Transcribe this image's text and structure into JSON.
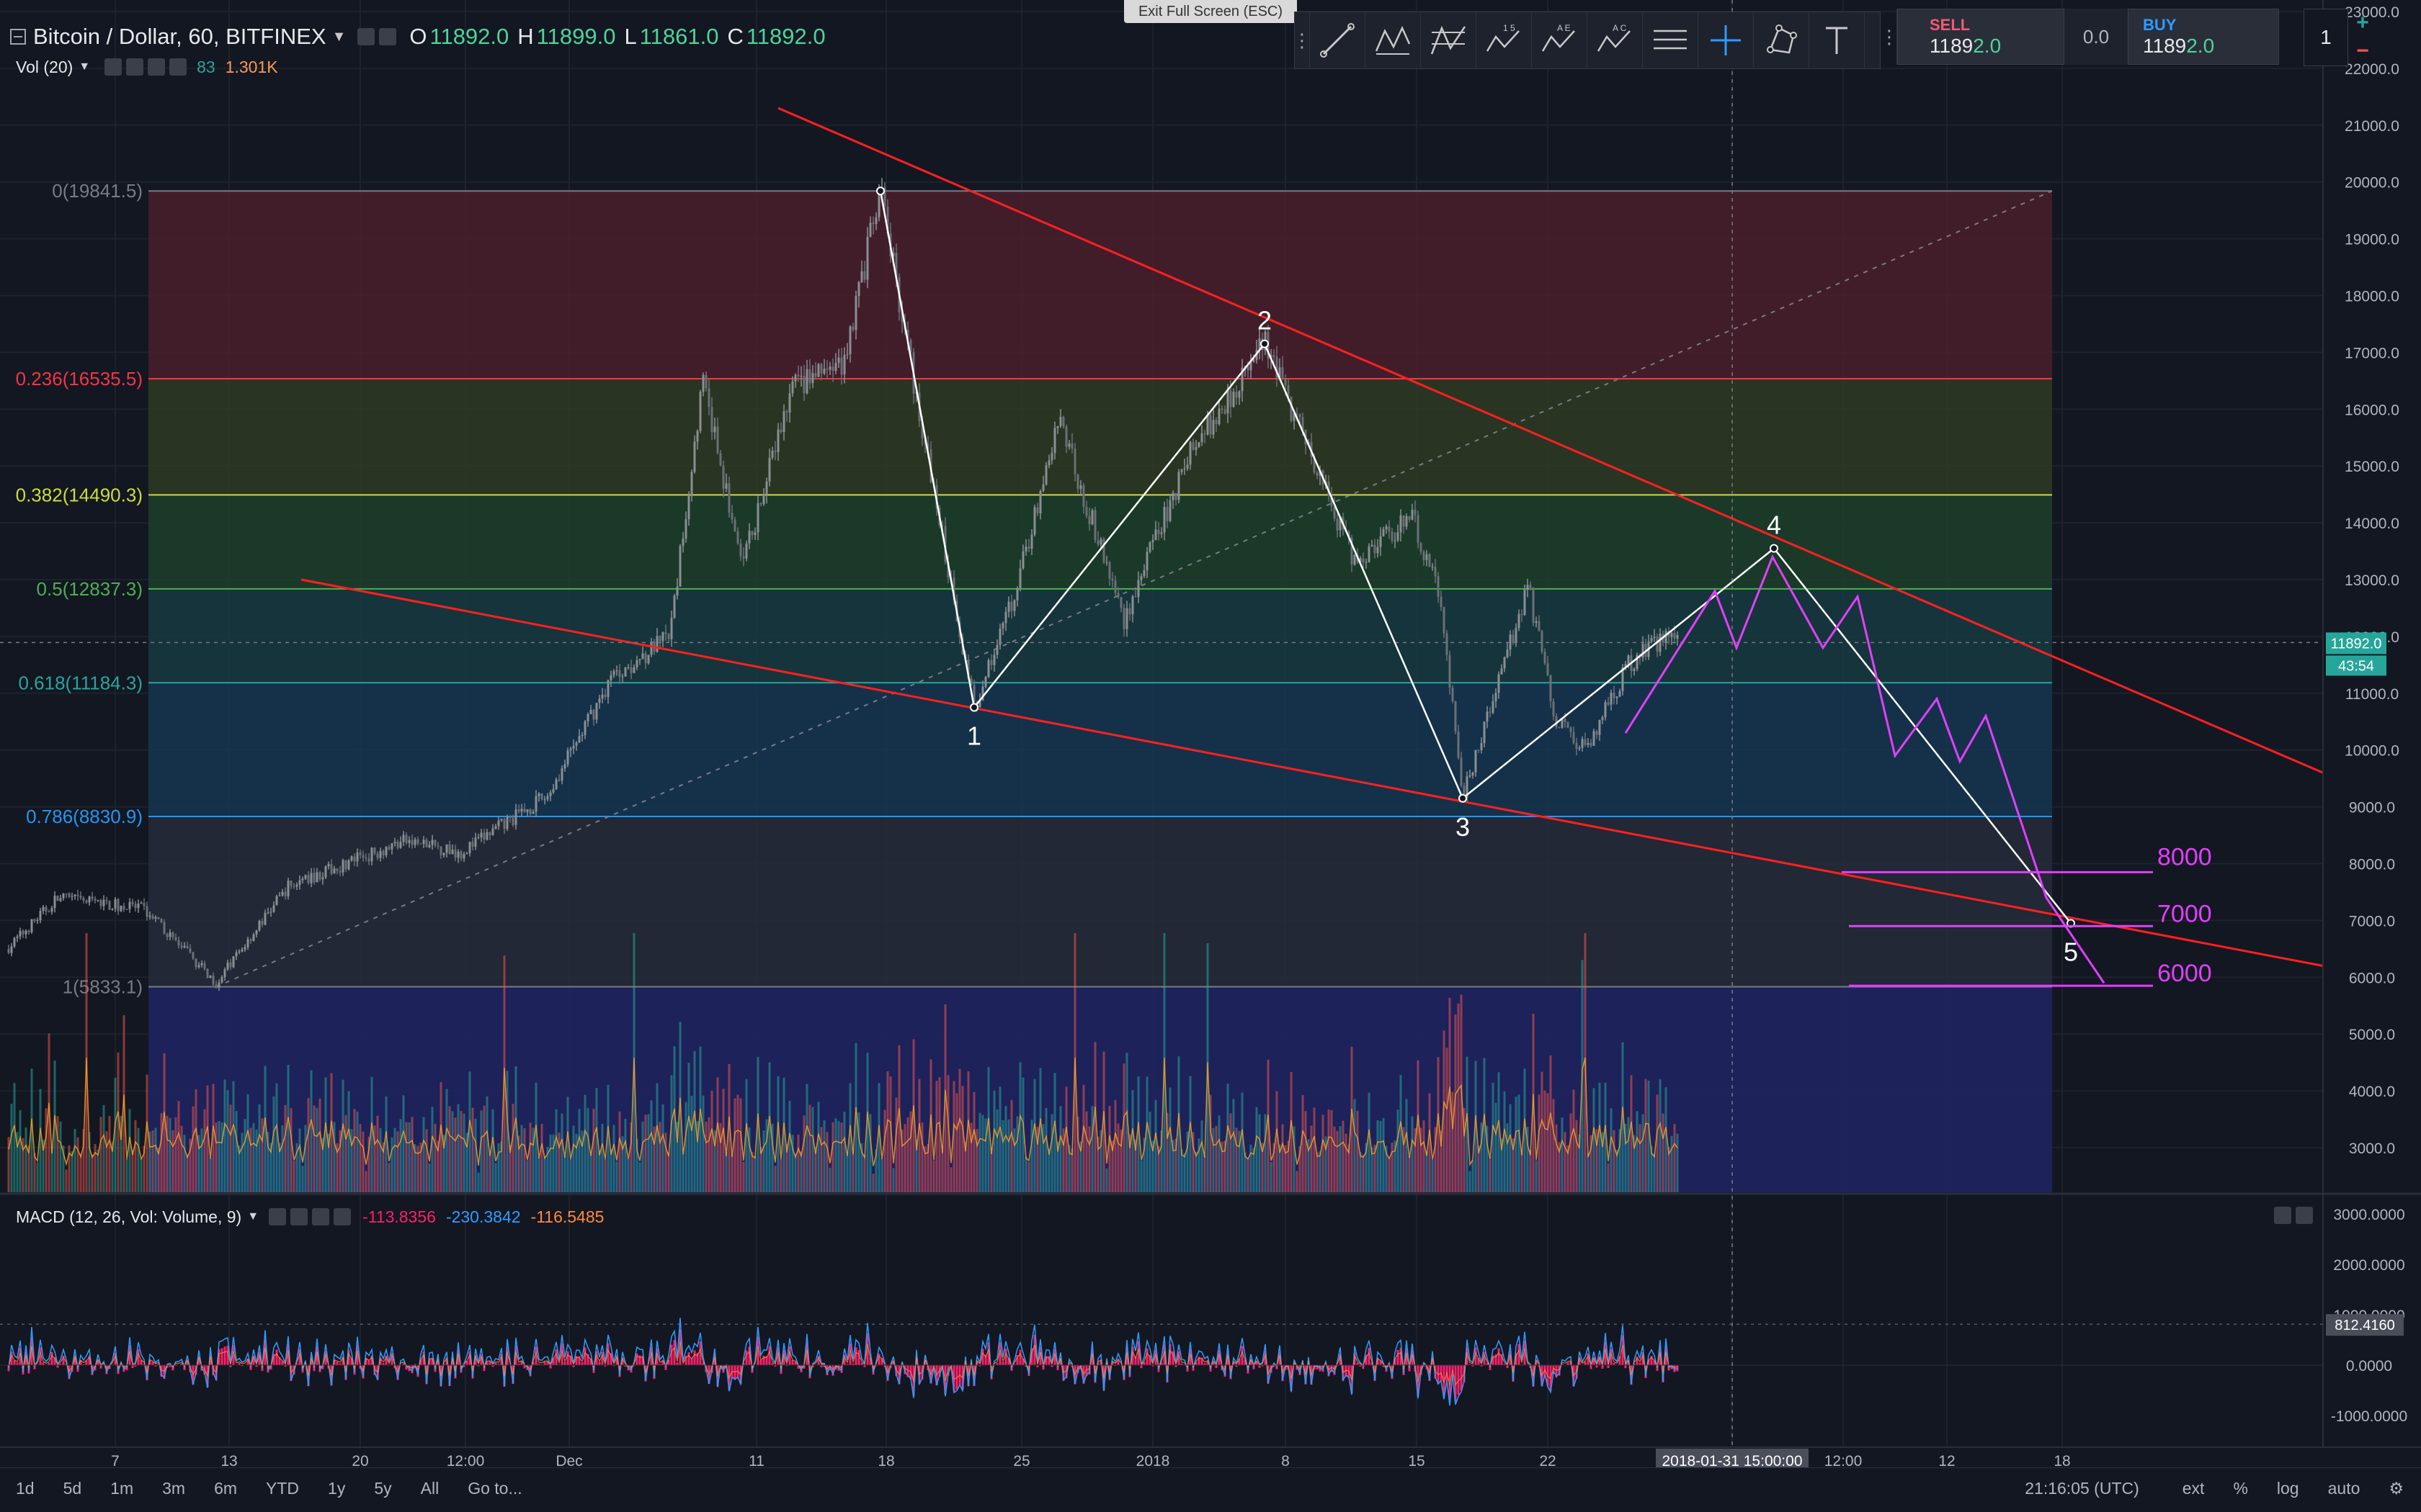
{
  "header": {
    "symbol": "Bitcoin / Dollar, 60, BITFINEX",
    "open_label": "O",
    "open": "11892.0",
    "high_label": "H",
    "high": "11899.0",
    "low_label": "L",
    "low": "11861.0",
    "close_label": "C",
    "close": "11892.0"
  },
  "volume_indicator": {
    "label": "Vol (20)",
    "value1": "83",
    "value2": "1.301K"
  },
  "macd_indicator": {
    "label": "MACD (12, 26, Vol: Volume, 9)",
    "value1": "-113.8356",
    "value2": "-230.3842",
    "value3": "-116.5485"
  },
  "exit_fullscreen": "Exit Full Screen (ESC)",
  "trade_panel": {
    "sell_label": "SELL",
    "sell_price_a": "1189",
    "sell_price_b": "2.0",
    "spread": "0.0",
    "buy_label": "BUY",
    "buy_price_a": "1189",
    "buy_price_b": "2.0",
    "quantity": "1",
    "plus": "+",
    "minus": "−"
  },
  "toolbar_icons": [
    "trend-line-icon",
    "pitchfork-icon",
    "fib-icon",
    "abcd-pattern-icon",
    "elliott-wave-icon",
    "xabcd-pattern-icon",
    "lines-icon",
    "crosshair-icon",
    "node-shape-icon",
    "text-icon"
  ],
  "bottom_bar": {
    "timeframes": [
      "1d",
      "5d",
      "1m",
      "3m",
      "6m",
      "YTD",
      "1y",
      "5y",
      "All"
    ],
    "goto": "Go to...",
    "clock": "21:16:05 (UTC)",
    "options": [
      "ext",
      "%",
      "log",
      "auto"
    ]
  },
  "colors": {
    "up": "#26a69a",
    "down": "#ef5350",
    "trendline": "#ff2020",
    "magenta": "#e040fb",
    "wave": "#ffffff"
  },
  "chart_data": {
    "type": "candlestick",
    "price_axis_ticks": [
      23000,
      22000,
      21000,
      20000,
      19000,
      18000,
      17000,
      16000,
      15000,
      14000,
      13000,
      12000,
      11000,
      10000,
      9000,
      8000,
      7000,
      6000,
      5000,
      4000,
      3000
    ],
    "price_axis_labels": [
      "23000.0",
      "22000.0",
      "21000.0",
      "20000.0",
      "19000.0",
      "18000.0",
      "17000.0",
      "16000.0",
      "15000.0",
      "14000.0",
      "13000.0",
      "12000.0",
      "11000.0",
      "10000.0",
      "9000.0",
      "8000.0",
      "7000.0",
      "6000.0",
      "5000.0",
      "4000.0",
      "3000.0"
    ],
    "current_price_label": "11892.0",
    "countdown_label": "43:54",
    "time_axis_labels": [
      "7",
      "13",
      "20",
      "12:00",
      "Dec",
      "11",
      "18",
      "25",
      "2018",
      "8",
      "15",
      "22",
      "2018-01-31 15:00:00",
      "12:00",
      "12",
      "18"
    ],
    "fibonacci_levels": [
      {
        "ratio": "0",
        "price": 19841.5,
        "label": "0(19841.5)",
        "color": "#787b86"
      },
      {
        "ratio": "0.236",
        "price": 16535.5,
        "label": "0.236(16535.5)",
        "color": "#f23645"
      },
      {
        "ratio": "0.382",
        "price": 14490.3,
        "label": "0.382(14490.3)",
        "color": "#cddc39"
      },
      {
        "ratio": "0.5",
        "price": 12837.3,
        "label": "0.5(12837.3)",
        "color": "#4caf50"
      },
      {
        "ratio": "0.618",
        "price": 11184.3,
        "label": "0.618(11184.3)",
        "color": "#26a69a"
      },
      {
        "ratio": "0.786",
        "price": 8830.9,
        "label": "0.786(8830.9)",
        "color": "#2196f3"
      },
      {
        "ratio": "1",
        "price": 5833.1,
        "label": "1(5833.1)",
        "color": "#787b86"
      }
    ],
    "elliott_waves": [
      {
        "label": "",
        "price": 19841.5
      },
      {
        "label": "1",
        "price": 10750
      },
      {
        "label": "2",
        "price": 17150
      },
      {
        "label": "3",
        "price": 9150
      },
      {
        "label": "4",
        "price": 13550
      },
      {
        "label": "5",
        "price": 6950
      }
    ],
    "target_levels": [
      {
        "label": "8000",
        "price": 7850
      },
      {
        "label": "7000",
        "price": 6900
      },
      {
        "label": "6000",
        "price": 5850
      }
    ],
    "macd_axis_labels": [
      "3000.0000",
      "2000.0000",
      "1000.0000",
      "0.0000",
      "-1000.0000"
    ],
    "macd_axis_ticks": [
      3000,
      2000,
      1000,
      0,
      -1000
    ],
    "macd_current_label": "812.4160"
  }
}
